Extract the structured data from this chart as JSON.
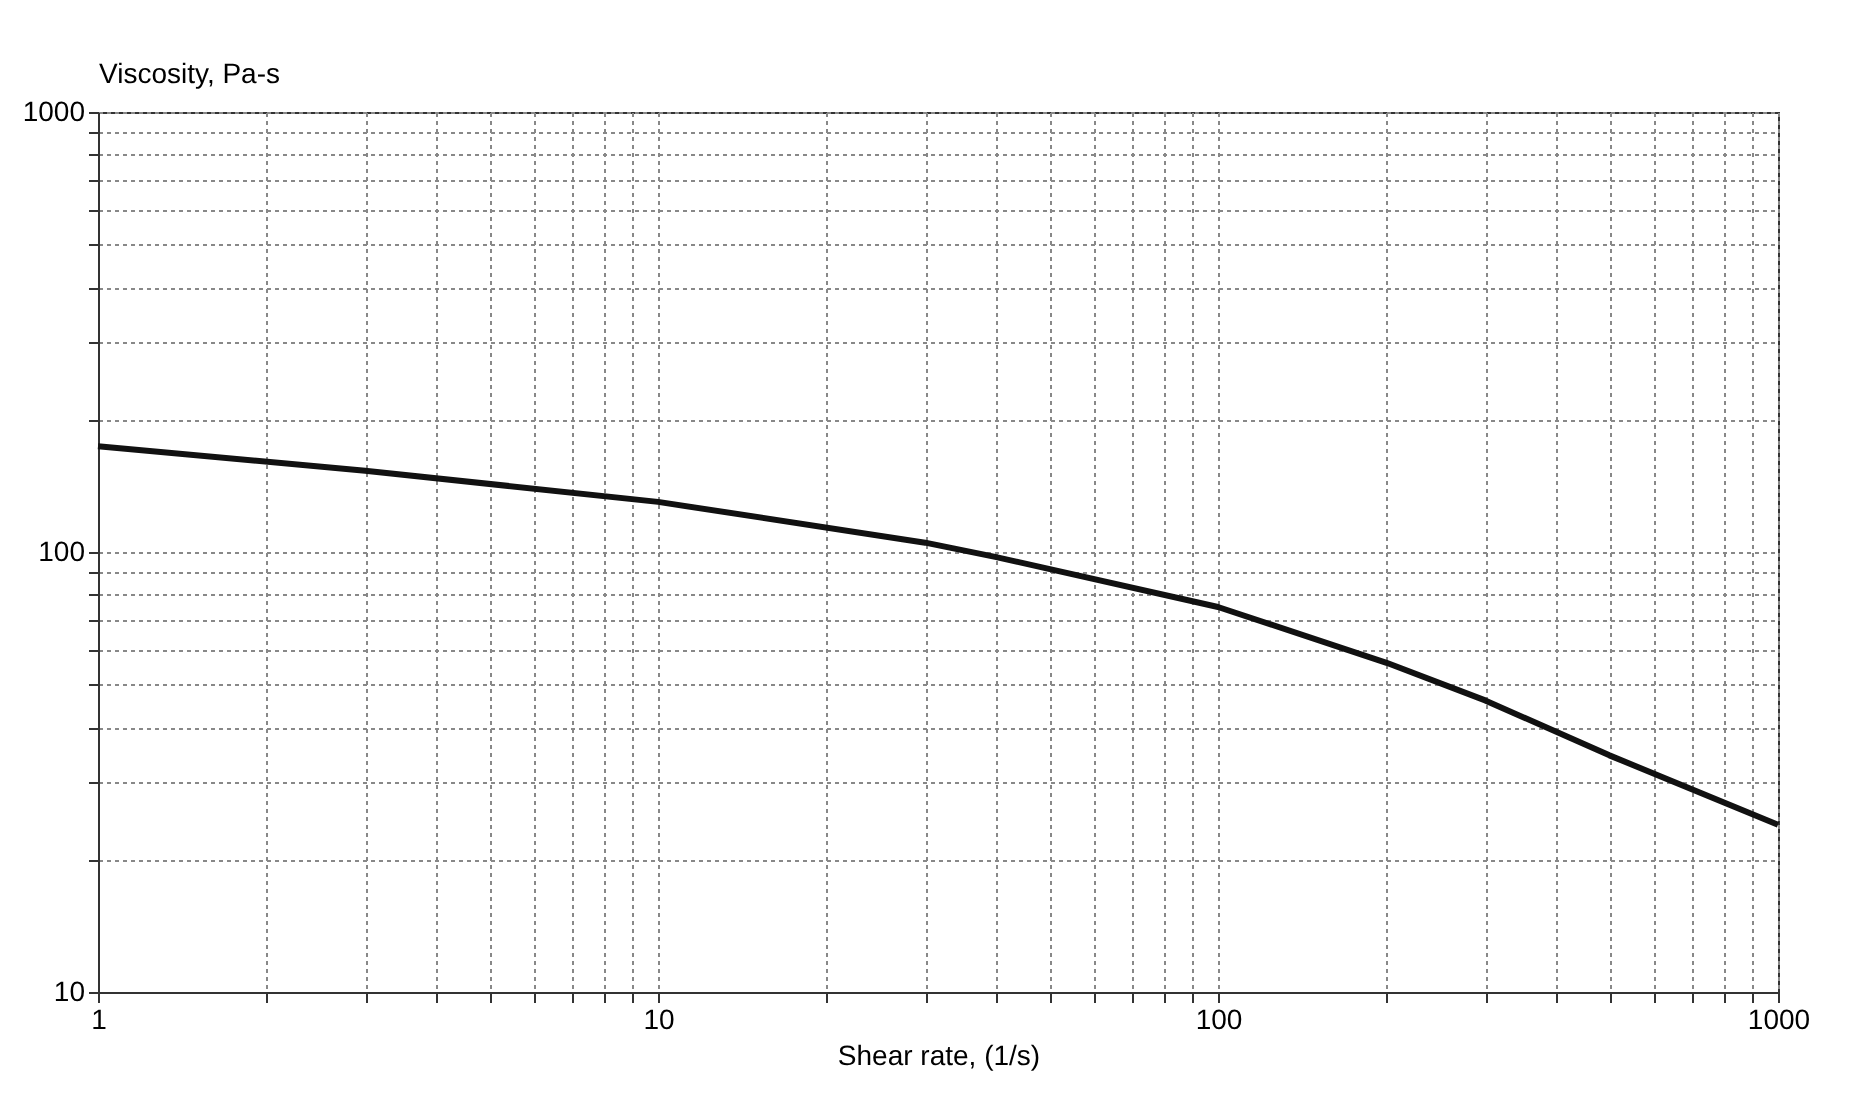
{
  "chart_data": {
    "type": "line",
    "xlabel": "Shear rate, (1/s)",
    "ylabel": "Viscosity, Pa-s",
    "x": [
      1,
      3,
      10,
      30,
      40,
      100,
      200,
      300,
      500,
      1000
    ],
    "series": [
      {
        "color": "#111111",
        "values": [
          174,
          153,
          130,
          105,
          97.5,
          75,
          56,
          46,
          34.5,
          24
        ]
      }
    ],
    "log": "xy",
    "xlim": [
      1,
      1000
    ],
    "ylim": [
      10,
      1000
    ],
    "xticks": [
      1,
      {
        "value": 2,
        "label": null
      },
      {
        "value": 3,
        "label": null
      },
      {
        "value": 4,
        "label": null
      },
      {
        "value": 5,
        "label": null
      },
      {
        "value": 6,
        "label": null
      },
      {
        "value": 7,
        "label": null
      },
      {
        "value": 8,
        "label": null
      },
      {
        "value": 9,
        "label": null
      },
      10,
      {
        "value": 20,
        "label": null
      },
      {
        "value": 30,
        "label": null
      },
      {
        "value": 40,
        "label": null
      },
      {
        "value": 50,
        "label": null
      },
      {
        "value": 60,
        "label": null
      },
      {
        "value": 70,
        "label": null
      },
      {
        "value": 80,
        "label": null
      },
      {
        "value": 90,
        "label": null
      },
      100,
      {
        "value": 200,
        "label": null
      },
      {
        "value": 300,
        "label": null
      },
      {
        "value": 400,
        "label": null
      },
      {
        "value": 500,
        "label": null
      },
      {
        "value": 600,
        "label": null
      },
      {
        "value": 700,
        "label": null
      },
      {
        "value": 800,
        "label": null
      },
      {
        "value": 900,
        "label": null
      },
      1000
    ],
    "yticks": [
      10,
      {
        "value": 20,
        "label": null
      },
      {
        "value": 30,
        "label": null
      },
      {
        "value": 40,
        "label": null
      },
      {
        "value": 50,
        "label": null
      },
      {
        "value": 60,
        "label": null
      },
      {
        "value": 70,
        "label": null
      },
      {
        "value": 80,
        "label": null
      },
      {
        "value": 90,
        "label": null
      },
      100,
      {
        "value": 200,
        "label": null
      },
      {
        "value": 300,
        "label": null
      },
      {
        "value": 400,
        "label": null
      },
      {
        "value": 500,
        "label": null
      },
      {
        "value": 600,
        "label": null
      },
      {
        "value": 700,
        "label": null
      },
      {
        "value": 800,
        "label": null
      },
      {
        "value": 900,
        "label": null
      },
      1000
    ],
    "grid": true,
    "marker": "none",
    "line_style": "solid"
  }
}
